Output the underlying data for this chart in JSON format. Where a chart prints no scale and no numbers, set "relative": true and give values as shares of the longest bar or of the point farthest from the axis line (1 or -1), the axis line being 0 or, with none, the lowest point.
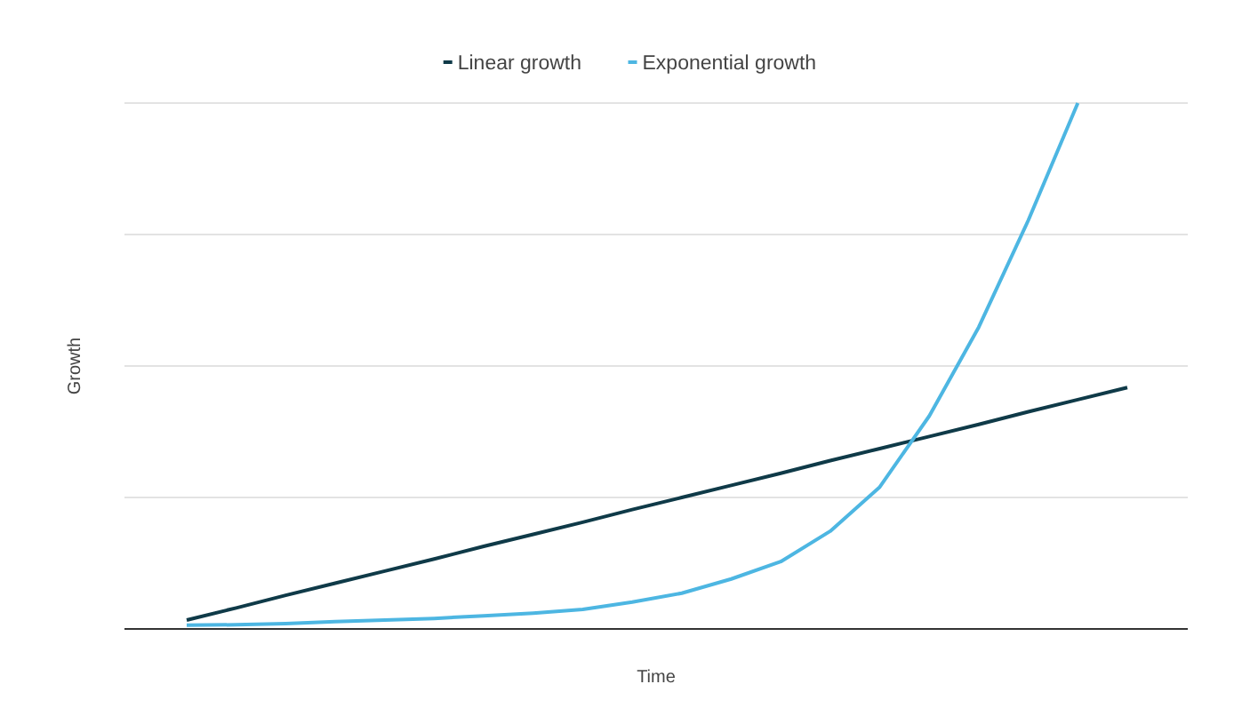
{
  "chart_data": {
    "type": "line",
    "relative": true,
    "xlabel": "Time",
    "ylabel": "Growth",
    "grid": "y",
    "legend": "top",
    "marker": "none",
    "line_style": "solid",
    "categories": [
      null,
      null,
      null,
      null,
      null,
      null,
      null,
      null,
      null,
      null,
      null,
      null,
      null,
      null,
      null,
      null,
      null,
      null,
      null,
      null
    ],
    "series": [
      {
        "name": "Linear growth",
        "color": "#0f3a48",
        "values": [
          0.017,
          0.04,
          0.064,
          0.087,
          0.11,
          0.133,
          0.157,
          0.18,
          0.203,
          0.227,
          0.25,
          0.273,
          0.296,
          0.32,
          0.343,
          0.366,
          0.389,
          0.413,
          0.436,
          0.459
        ]
      },
      {
        "name": "Exponential growth",
        "color": "#4db6e2",
        "values": [
          0.007,
          0.008,
          0.01,
          0.014,
          0.017,
          0.02,
          0.025,
          0.03,
          0.037,
          0.051,
          0.068,
          0.095,
          0.128,
          0.186,
          0.27,
          0.405,
          0.574,
          0.777,
          1,
          null
        ]
      }
    ]
  }
}
